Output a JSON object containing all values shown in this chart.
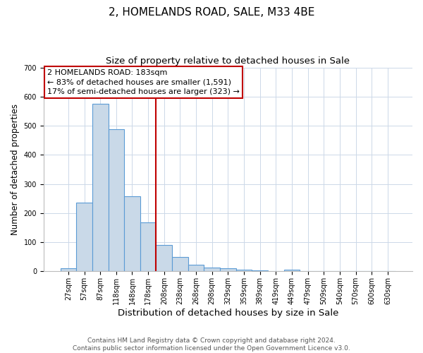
{
  "title": "2, HOMELANDS ROAD, SALE, M33 4BE",
  "subtitle": "Size of property relative to detached houses in Sale",
  "xlabel": "Distribution of detached houses by size in Sale",
  "ylabel": "Number of detached properties",
  "bins": [
    "27sqm",
    "57sqm",
    "87sqm",
    "118sqm",
    "148sqm",
    "178sqm",
    "208sqm",
    "238sqm",
    "268sqm",
    "298sqm",
    "329sqm",
    "359sqm",
    "389sqm",
    "419sqm",
    "449sqm",
    "479sqm",
    "509sqm",
    "540sqm",
    "570sqm",
    "600sqm",
    "630sqm"
  ],
  "values": [
    10,
    237,
    575,
    487,
    258,
    168,
    91,
    50,
    24,
    14,
    10,
    5,
    4,
    0,
    5,
    0,
    0,
    0,
    0,
    0,
    0
  ],
  "bar_color": "#c9d9e8",
  "bar_edge_color": "#5b9bd5",
  "vline_color": "#c00000",
  "annotation_text": "2 HOMELANDS ROAD: 183sqm\n← 83% of detached houses are smaller (1,591)\n17% of semi-detached houses are larger (323) →",
  "annotation_box_color": "#ffffff",
  "annotation_box_edge": "#c00000",
  "ylim": [
    0,
    700
  ],
  "yticks": [
    0,
    100,
    200,
    300,
    400,
    500,
    600,
    700
  ],
  "footnote": "Contains HM Land Registry data © Crown copyright and database right 2024.\nContains public sector information licensed under the Open Government Licence v3.0.",
  "title_fontsize": 11,
  "subtitle_fontsize": 9.5,
  "xlabel_fontsize": 9.5,
  "ylabel_fontsize": 8.5,
  "tick_fontsize": 7,
  "annotation_fontsize": 8,
  "footnote_fontsize": 6.5
}
